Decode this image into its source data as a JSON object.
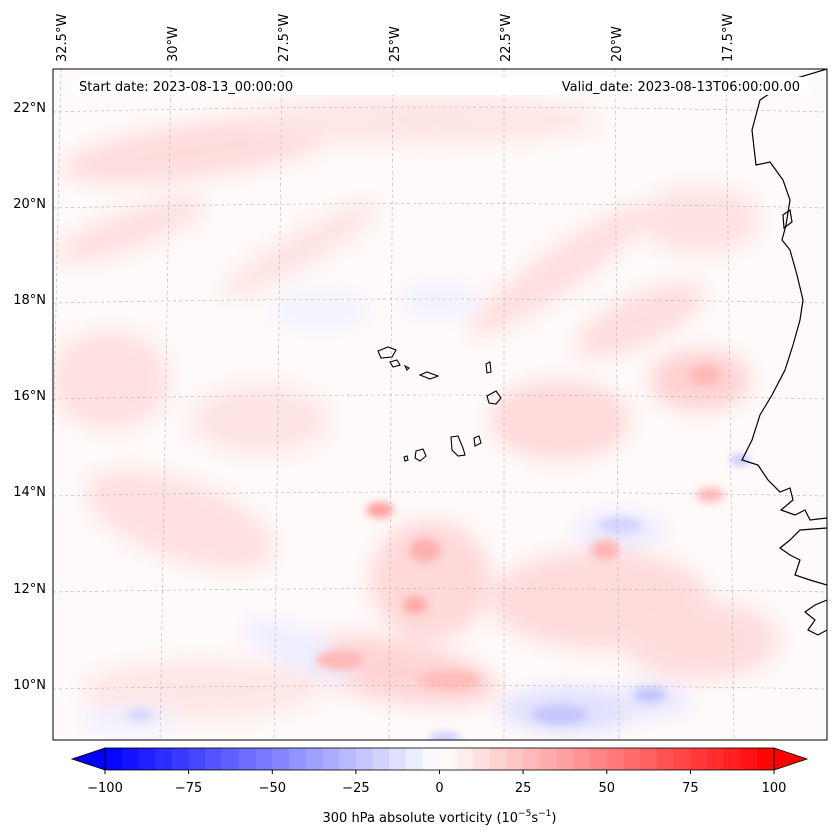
{
  "map": {
    "start_date": "Start date: 2023-08-13_00:00:00",
    "valid_date": "Valid_date: 2023-08-13T06:00:00.00",
    "lon_labels": [
      "32.5°W",
      "30°W",
      "27.5°W",
      "25°W",
      "22.5°W",
      "20°W",
      "17.5°W"
    ],
    "lat_labels": [
      "22°N",
      "20°N",
      "18°N",
      "16°N",
      "14°N",
      "12°N",
      "10°N"
    ],
    "colorbar": {
      "ticks": [
        "−100",
        "−75",
        "−50",
        "−25",
        "0",
        "25",
        "50",
        "75",
        "100"
      ],
      "label": "300 hPa absolute vorticity",
      "units_base": "10",
      "units_exp": "−5",
      "units_s": "s",
      "units_s_exp": "−1",
      "min": -100,
      "max": 100,
      "levels": 40,
      "extend": "both",
      "cmap": "bwr"
    },
    "colors": {
      "neg": "#0000ff",
      "mid": "#ffffff",
      "pos": "#ff0000",
      "coast": "#000000",
      "grid": "#b0b0b0"
    }
  }
}
